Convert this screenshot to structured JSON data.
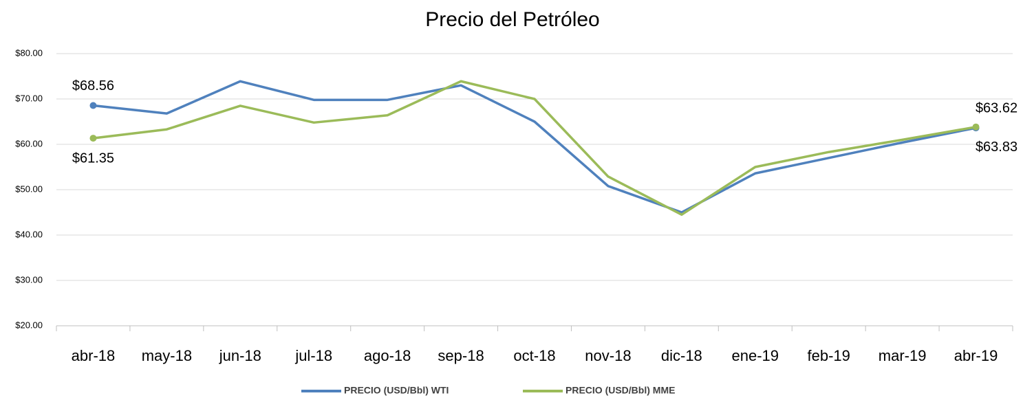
{
  "chart_data": {
    "type": "line",
    "title": "Precio del Petróleo",
    "categories": [
      "abr-18",
      "may-18",
      "jun-18",
      "jul-18",
      "ago-18",
      "sep-18",
      "oct-18",
      "nov-18",
      "dic-18",
      "ene-19",
      "feb-19",
      "mar-19",
      "abr-19"
    ],
    "series": [
      {
        "name": "PRECIO (USD/Bbl) WTI",
        "color": "#4f81bd",
        "values": [
          68.56,
          66.8,
          73.9,
          69.8,
          69.8,
          73.0,
          65.0,
          50.8,
          45.0,
          53.6,
          57.0,
          60.4,
          63.62
        ],
        "value_labels": [
          "$68.56",
          null,
          null,
          null,
          null,
          null,
          null,
          null,
          null,
          null,
          null,
          null,
          "$63.62"
        ]
      },
      {
        "name": "PRECIO (USD/Bbl) MME",
        "color": "#9bbb59",
        "values": [
          61.35,
          63.3,
          68.5,
          64.8,
          66.4,
          73.9,
          70.0,
          52.9,
          44.5,
          55.0,
          58.3,
          61.0,
          63.83
        ],
        "value_labels": [
          "$61.35",
          null,
          null,
          null,
          null,
          null,
          null,
          null,
          null,
          null,
          null,
          null,
          "$63.83"
        ]
      }
    ],
    "ylim": [
      20,
      80
    ],
    "yticks": [
      {
        "value": 20,
        "label": "$20.00"
      },
      {
        "value": 30,
        "label": "$30.00"
      },
      {
        "value": 40,
        "label": "$40.00"
      },
      {
        "value": 50,
        "label": "$50.00"
      },
      {
        "value": 60,
        "label": "$60.00"
      },
      {
        "value": 70,
        "label": "$70.00"
      },
      {
        "value": 80,
        "label": "$80.00"
      }
    ],
    "grid": true,
    "legend": "bottom"
  }
}
